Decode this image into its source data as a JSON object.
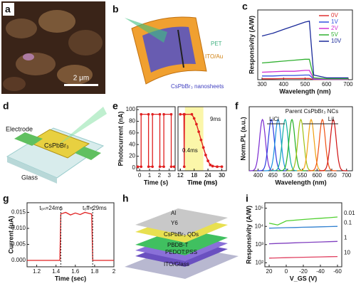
{
  "panels": {
    "a": {
      "label": "a",
      "scale_bar": "2 μm"
    },
    "b": {
      "label": "b",
      "parts": [
        "PET",
        "ITO/Au",
        "CsPbBr₃ nanosheets"
      ]
    },
    "c": {
      "label": "c",
      "chart": {
        "type": "line",
        "xlabel": "Wavelength (nm)",
        "ylabel": "Responsivity (A/W)",
        "xlim": [
          280,
          720
        ],
        "xticks": [
          300,
          400,
          500,
          600,
          700
        ],
        "ylim": [
          0,
          0.75
        ],
        "x": [
          300,
          350,
          400,
          450,
          500,
          520,
          540,
          600,
          700
        ],
        "series": [
          {
            "name": "0V",
            "color": "#e03030",
            "values": [
              0.01,
              0.01,
              0.012,
              0.012,
              0.013,
              0.013,
              0.002,
              0.001,
              0.001
            ]
          },
          {
            "name": "1V",
            "color": "#3050e0",
            "values": [
              0.04,
              0.04,
              0.045,
              0.045,
              0.05,
              0.05,
              0.005,
              0.003,
              0.003
            ]
          },
          {
            "name": "2V",
            "color": "#d030d0",
            "values": [
              0.08,
              0.085,
              0.09,
              0.09,
              0.1,
              0.1,
              0.01,
              0.005,
              0.005
            ]
          },
          {
            "name": "5V",
            "color": "#30b030",
            "values": [
              0.18,
              0.19,
              0.2,
              0.21,
              0.22,
              0.22,
              0.02,
              0.01,
              0.01
            ]
          },
          {
            "name": "10V",
            "color": "#1a2a9a",
            "values": [
              0.47,
              0.5,
              0.54,
              0.58,
              0.62,
              0.63,
              0.05,
              0.02,
              0.02
            ]
          }
        ]
      }
    },
    "d": {
      "label": "d",
      "parts": [
        "Electrode",
        "CsPbBr₃",
        "Glass"
      ]
    },
    "e": {
      "label": "e",
      "charts": [
        {
          "type": "line",
          "xlabel": "Time (s)",
          "ylabel": "Photocurrent (nA)",
          "xlim": [
            -0.3,
            3.6
          ],
          "xticks": [
            0,
            1,
            2,
            3
          ],
          "ylim": [
            -5,
            105
          ],
          "yticks": [
            0,
            20,
            40,
            60,
            80,
            100
          ],
          "x": [
            -0.2,
            0.15,
            0.15,
            0.9,
            0.9,
            1.3,
            1.3,
            2.05,
            2.05,
            2.45,
            2.45,
            3.2,
            3.2,
            3.5
          ],
          "series": [
            {
              "color": "#e02020",
              "marker": true,
              "values": [
                2,
                2,
                92,
                92,
                2,
                2,
                92,
                92,
                2,
                2,
                92,
                92,
                2,
                2
              ]
            }
          ]
        },
        {
          "type": "line",
          "xlabel": "Time (ms)",
          "xlim": [
            11,
            32
          ],
          "xticks": [
            12,
            18,
            24,
            30
          ],
          "ylim": [
            -5,
            105
          ],
          "annotations": [
            "9ms",
            "0.4ms"
          ],
          "x": [
            12,
            13.6,
            13.7,
            13.8,
            17,
            18,
            19,
            20,
            21,
            22,
            23,
            24,
            25,
            26,
            28,
            30
          ],
          "series": [
            {
              "color": "#e02020",
              "marker": true,
              "values": [
                92,
                92,
                2,
                92,
                92,
                85,
                75,
                62,
                48,
                35,
                22,
                12,
                5,
                3,
                2,
                2
              ]
            }
          ]
        }
      ]
    },
    "f": {
      "label": "f",
      "chart": {
        "type": "pl",
        "xlabel": "Wavelength (nm)",
        "ylabel": "Norm.PL (a.u.)",
        "xlim": [
          370,
          720
        ],
        "xticks": [
          400,
          450,
          500,
          550,
          600,
          650,
          700
        ],
        "ylim": [
          0,
          1.25
        ],
        "annotations": [
          "LiCl",
          "Parent CsPbBr₃ NCs",
          "LiI"
        ],
        "series": [
          {
            "color": "#7a2ad0",
            "peak": 415,
            "height": 1
          },
          {
            "color": "#2a3ae0",
            "peak": 445,
            "height": 1
          },
          {
            "color": "#1a90e0",
            "peak": 468,
            "height": 1
          },
          {
            "color": "#10b0a0",
            "peak": 492,
            "height": 1
          },
          {
            "color": "#20b020",
            "peak": 515,
            "height": 1
          },
          {
            "color": "#a0c010",
            "peak": 545,
            "height": 1
          },
          {
            "color": "#f0a010",
            "peak": 580,
            "height": 1
          },
          {
            "color": "#f05010",
            "peak": 618,
            "height": 1
          },
          {
            "color": "#d01010",
            "peak": 655,
            "height": 1
          }
        ]
      }
    },
    "g": {
      "label": "g",
      "chart": {
        "type": "line",
        "xlabel": "Time (sec)",
        "ylabel": "Current (μA)",
        "xlim": [
          1.1,
          2.0
        ],
        "xticks": [
          1.2,
          1.4,
          1.6,
          1.8,
          2.0
        ],
        "ylim": [
          -0.002,
          0.018
        ],
        "yticks": [
          {
            "value": 0,
            "label": "0.000"
          },
          {
            "value": 0.005,
            "label": "0.005"
          },
          {
            "value": 0.01,
            "label": "0.010"
          },
          {
            "value": 0.015,
            "label": "0.015"
          }
        ],
        "annotations": [
          "tₒₙ=24ms",
          "tₒff=29ms"
        ],
        "x": [
          1.1,
          1.44,
          1.45,
          1.5,
          1.55,
          1.6,
          1.65,
          1.7,
          1.75,
          1.77,
          1.78,
          2.0
        ],
        "series": [
          {
            "color": "#e02020",
            "values": [
              0,
              0,
              0.0145,
              0.015,
              0.0142,
              0.0148,
              0.0143,
              0.015,
              0.0146,
              0.0145,
              0,
              0
            ]
          }
        ]
      }
    },
    "h": {
      "label": "h",
      "parts": [
        "Al",
        "Y6",
        "CsPbBr₃ QDs",
        "PBDB-T",
        "PEDOT:PSS",
        "ITO/Glass"
      ]
    },
    "i": {
      "label": "i",
      "chart": {
        "type": "line",
        "xlabel": "V_GS (V)",
        "ylabel": "Responsivity (A/W)",
        "ylog": true,
        "xlim": [
          25,
          -65
        ],
        "xticks": [
          20,
          0,
          -20,
          -40,
          -60
        ],
        "ylim": [
          60,
          200000
        ],
        "yticks": [
          {
            "value": 100,
            "label": "10²"
          },
          {
            "value": 1000,
            "label": "10³"
          },
          {
            "value": 10000,
            "label": "10⁴"
          },
          {
            "value": 100000,
            "label": "10⁵"
          }
        ],
        "x": [
          20,
          10,
          0,
          -10,
          -20,
          -30,
          -40,
          -50,
          -60
        ],
        "series": [
          {
            "name": "0.01",
            "color": "#50d030",
            "values": [
              15000,
              12000,
              20000,
              22000,
              24000,
              26000,
              28000,
              30000,
              33000
            ]
          },
          {
            "name": "0.1",
            "color": "#3080d0",
            "values": [
              8000,
              8200,
              8500,
              8700,
              9000,
              9200,
              9500,
              9800,
              10000
            ]
          },
          {
            "name": "1",
            "color": "#8040c0",
            "values": [
              1100,
              1150,
              1200,
              1250,
              1300,
              1350,
              1400,
              1450,
              1500
            ]
          },
          {
            "name": "10",
            "color": "#e04060",
            "values": [
              180,
              185,
              190,
              195,
              200,
              205,
              210,
              215,
              220
            ]
          }
        ]
      }
    }
  }
}
